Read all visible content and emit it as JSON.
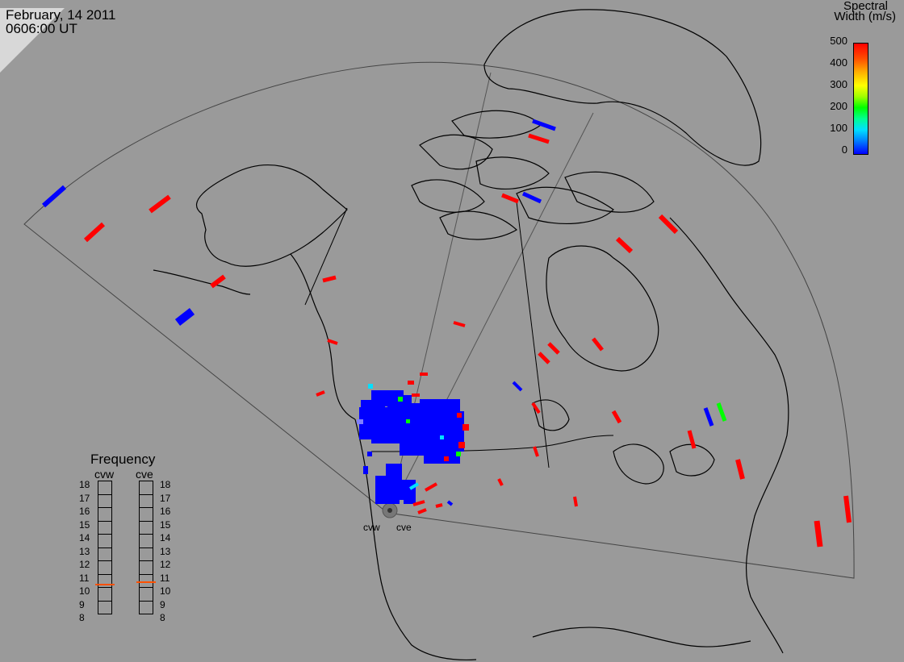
{
  "header": {
    "date": "February, 14 2011",
    "time": "0606:00 UT"
  },
  "colorbar": {
    "title_line1": "Spectral",
    "title_line2": "Width (m/s)",
    "ticks": [
      "500",
      "400",
      "300",
      "200",
      "100",
      "0"
    ],
    "min_color": "#0000ff",
    "max_color": "#ff0000"
  },
  "frequency_panel": {
    "title": "Frequency",
    "radars": [
      "cvw",
      "cve"
    ],
    "tick_labels": [
      "18",
      "17",
      "16",
      "15",
      "14",
      "13",
      "12",
      "11",
      "10",
      "9",
      "8"
    ],
    "current_mhz": {
      "cvw": 10.6,
      "cve": 10.8
    },
    "marker_color": "#ff5000"
  },
  "sites": {
    "west": "cvw",
    "east": "cve"
  },
  "colors": {
    "background": "#9a9a9a",
    "coastline": "#000000",
    "fov_outline": "#444444",
    "low_width": "#0000ff",
    "high_width": "#ff0000",
    "mid_width": "#00ff00"
  }
}
